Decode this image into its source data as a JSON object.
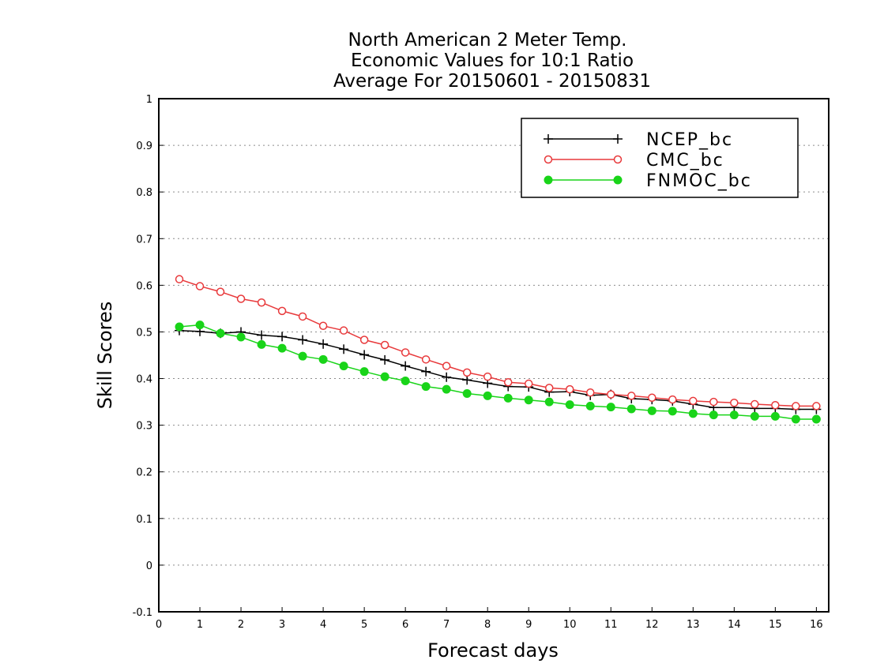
{
  "chart_data": {
    "type": "line",
    "title": [
      "North American 2 Meter Temp.",
      "Economic Values for 10:1 Ratio",
      "Average For 20150601 - 20150831"
    ],
    "xlabel": "Forecast days",
    "ylabel": "Skill Scores",
    "xlim": [
      0,
      16.3
    ],
    "ylim": [
      -0.1,
      1
    ],
    "xticks": [
      0,
      1,
      2,
      3,
      4,
      5,
      6,
      7,
      8,
      9,
      10,
      11,
      12,
      13,
      14,
      15,
      16
    ],
    "yticks": [
      -0.1,
      0,
      0.1,
      0.2,
      0.3,
      0.4,
      0.5,
      0.6,
      0.7,
      0.8,
      0.9,
      1
    ],
    "ytick_labels": [
      "-0.1",
      "0",
      "0.1",
      "0.2",
      "0.3",
      "0.4",
      "0.5",
      "0.6",
      "0.7",
      "0.8",
      "0.9",
      "1"
    ],
    "grid": "horizontal dotted",
    "legend_position": "top-right",
    "x": [
      0.5,
      1,
      1.5,
      2,
      2.5,
      3,
      3.5,
      4,
      4.5,
      5,
      5.5,
      6,
      6.5,
      7,
      7.5,
      8,
      8.5,
      9,
      9.5,
      10,
      10.5,
      11,
      11.5,
      12,
      12.5,
      13,
      13.5,
      14,
      14.5,
      15,
      15.5,
      16
    ],
    "series": [
      {
        "name": "NCEP_bc",
        "color": "#000000",
        "marker": "plus",
        "values": [
          0.503,
          0.501,
          0.497,
          0.5,
          0.493,
          0.49,
          0.483,
          0.474,
          0.463,
          0.451,
          0.44,
          0.427,
          0.415,
          0.403,
          0.397,
          0.39,
          0.383,
          0.382,
          0.371,
          0.372,
          0.364,
          0.366,
          0.357,
          0.355,
          0.352,
          0.345,
          0.338,
          0.338,
          0.336,
          0.336,
          0.334,
          0.334
        ]
      },
      {
        "name": "CMC_bc",
        "color": "#e8393b",
        "marker": "open-circle",
        "values": [
          0.613,
          0.598,
          0.586,
          0.571,
          0.563,
          0.545,
          0.533,
          0.513,
          0.503,
          0.483,
          0.472,
          0.456,
          0.441,
          0.427,
          0.413,
          0.404,
          0.392,
          0.389,
          0.38,
          0.377,
          0.37,
          0.366,
          0.363,
          0.359,
          0.355,
          0.352,
          0.35,
          0.348,
          0.345,
          0.343,
          0.341,
          0.341
        ]
      },
      {
        "name": "FNMOC_bc",
        "color": "#19d419",
        "marker": "filled-circle",
        "values": [
          0.511,
          0.515,
          0.497,
          0.489,
          0.473,
          0.465,
          0.448,
          0.441,
          0.427,
          0.415,
          0.404,
          0.395,
          0.383,
          0.377,
          0.368,
          0.363,
          0.358,
          0.354,
          0.35,
          0.344,
          0.341,
          0.339,
          0.335,
          0.331,
          0.33,
          0.325,
          0.322,
          0.322,
          0.319,
          0.319,
          0.313,
          0.313
        ]
      }
    ]
  }
}
